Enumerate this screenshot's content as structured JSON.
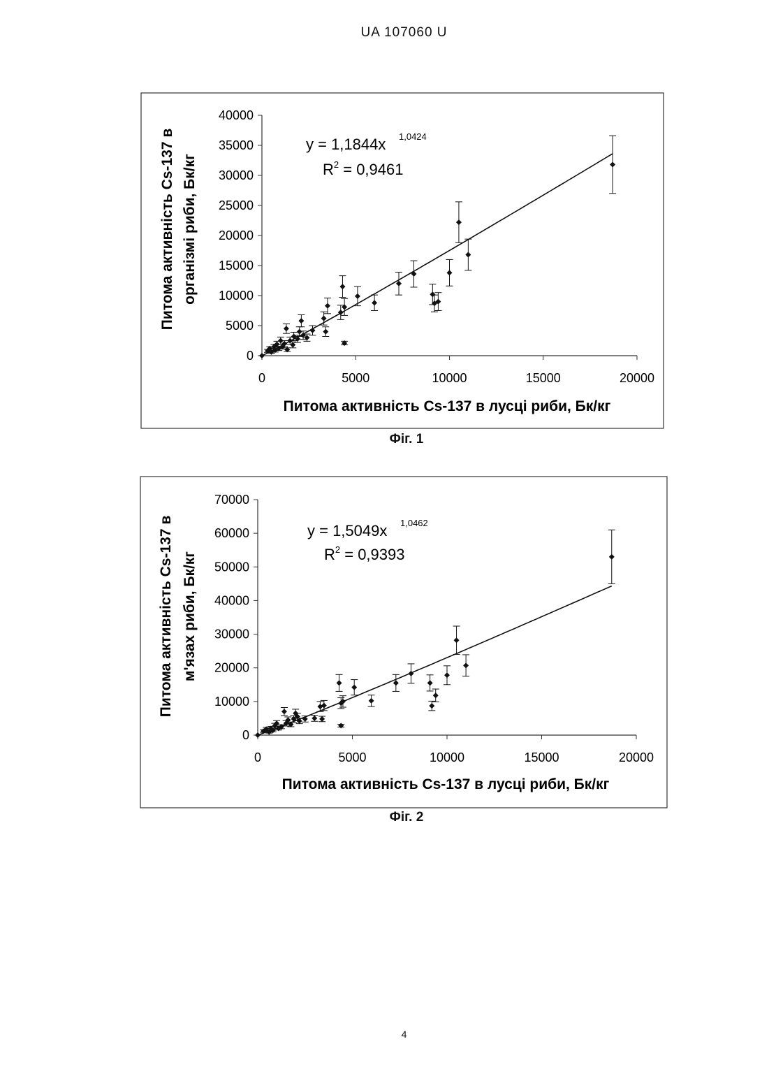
{
  "header": {
    "document_id": "UA   107060   U"
  },
  "page_number": "4",
  "figures": [
    {
      "caption": "Фіг. 1"
    },
    {
      "caption": "Фіг. 2"
    }
  ],
  "chart_data": [
    {
      "type": "scatter",
      "xlabel": "Питома активність Cs-137 в лусці риби, Бк/кг",
      "ylabel_lines": [
        "Питома активність Cs-137 в",
        "організмі риби, Бк/кг"
      ],
      "xlim": [
        0,
        20000
      ],
      "ylim": [
        0,
        40000
      ],
      "xticks": [
        "0",
        "5000",
        "10000",
        "15000",
        "20000"
      ],
      "yticks": [
        "0",
        "5000",
        "10000",
        "15000",
        "20000",
        "25000",
        "30000",
        "35000",
        "40000"
      ],
      "grid": false,
      "trendline": {
        "type": "power",
        "equation_main": "y = 1,1844x",
        "equation_exponent": "1,0424",
        "r2_prefix": "R",
        "r2_sup": "2",
        "r2_value": " = 0,9461",
        "a": 1.1844,
        "b": 1.0424,
        "x_range": [
          0,
          18700
        ]
      },
      "points": [
        {
          "x": 0,
          "y": 0,
          "err": 0
        },
        {
          "x": 300,
          "y": 800,
          "err": 250
        },
        {
          "x": 420,
          "y": 1200,
          "err": 300
        },
        {
          "x": 500,
          "y": 600,
          "err": 200
        },
        {
          "x": 650,
          "y": 1500,
          "err": 400
        },
        {
          "x": 700,
          "y": 900,
          "err": 300
        },
        {
          "x": 800,
          "y": 1900,
          "err": 500
        },
        {
          "x": 900,
          "y": 1200,
          "err": 350
        },
        {
          "x": 1000,
          "y": 2500,
          "err": 600
        },
        {
          "x": 1100,
          "y": 1500,
          "err": 400
        },
        {
          "x": 1200,
          "y": 2000,
          "err": 500
        },
        {
          "x": 1300,
          "y": 4500,
          "err": 800
        },
        {
          "x": 1350,
          "y": 1000,
          "err": 300
        },
        {
          "x": 1500,
          "y": 2500,
          "err": 600
        },
        {
          "x": 1650,
          "y": 1800,
          "err": 500
        },
        {
          "x": 1700,
          "y": 3200,
          "err": 700
        },
        {
          "x": 1900,
          "y": 2800,
          "err": 600
        },
        {
          "x": 2000,
          "y": 4000,
          "err": 800
        },
        {
          "x": 2100,
          "y": 5800,
          "err": 1000
        },
        {
          "x": 2200,
          "y": 3400,
          "err": 700
        },
        {
          "x": 2400,
          "y": 3000,
          "err": 600
        },
        {
          "x": 2700,
          "y": 4200,
          "err": 800
        },
        {
          "x": 3300,
          "y": 6200,
          "err": 1100
        },
        {
          "x": 3400,
          "y": 4000,
          "err": 800
        },
        {
          "x": 3500,
          "y": 8300,
          "err": 1300
        },
        {
          "x": 4200,
          "y": 7200,
          "err": 1200
        },
        {
          "x": 4300,
          "y": 11500,
          "err": 1800
        },
        {
          "x": 4400,
          "y": 8100,
          "err": 1400
        },
        {
          "x": 4400,
          "y": 2100,
          "err": 300
        },
        {
          "x": 5100,
          "y": 9900,
          "err": 1600
        },
        {
          "x": 6000,
          "y": 8800,
          "err": 1300
        },
        {
          "x": 7300,
          "y": 12000,
          "err": 1900
        },
        {
          "x": 8100,
          "y": 13600,
          "err": 2200
        },
        {
          "x": 9100,
          "y": 10200,
          "err": 1700
        },
        {
          "x": 9200,
          "y": 8700,
          "err": 1400
        },
        {
          "x": 9400,
          "y": 9000,
          "err": 1500
        },
        {
          "x": 10000,
          "y": 13800,
          "err": 2200
        },
        {
          "x": 10500,
          "y": 22200,
          "err": 3400
        },
        {
          "x": 11000,
          "y": 16800,
          "err": 2600
        },
        {
          "x": 18700,
          "y": 31800,
          "err": 4800
        }
      ]
    },
    {
      "type": "scatter",
      "xlabel": "Питома активність Cs-137 в лусці риби, Бк/кг",
      "ylabel_lines": [
        "Питома активність Cs-137 в",
        "м'язах риби, Бк/кг"
      ],
      "xlim": [
        0,
        20000
      ],
      "ylim": [
        0,
        70000
      ],
      "xticks": [
        "0",
        "5000",
        "10000",
        "15000",
        "20000"
      ],
      "yticks": [
        "0",
        "10000",
        "20000",
        "30000",
        "40000",
        "50000",
        "60000",
        "70000"
      ],
      "grid": false,
      "trendline": {
        "type": "power",
        "equation_main": "y = 1,5049x",
        "equation_exponent": "1,0462",
        "r2_prefix": "R",
        "r2_sup": "2",
        "r2_value": " = 0,9393",
        "a": 1.5049,
        "b": 1.0462,
        "x_range": [
          0,
          18700
        ]
      },
      "points": [
        {
          "x": 0,
          "y": 0,
          "err": 0
        },
        {
          "x": 300,
          "y": 1200,
          "err": 400
        },
        {
          "x": 450,
          "y": 1800,
          "err": 500
        },
        {
          "x": 600,
          "y": 900,
          "err": 300
        },
        {
          "x": 700,
          "y": 2000,
          "err": 600
        },
        {
          "x": 800,
          "y": 1400,
          "err": 400
        },
        {
          "x": 900,
          "y": 2800,
          "err": 700
        },
        {
          "x": 1000,
          "y": 3500,
          "err": 800
        },
        {
          "x": 1100,
          "y": 2000,
          "err": 500
        },
        {
          "x": 1250,
          "y": 2500,
          "err": 600
        },
        {
          "x": 1400,
          "y": 7000,
          "err": 1200
        },
        {
          "x": 1500,
          "y": 3500,
          "err": 800
        },
        {
          "x": 1600,
          "y": 4500,
          "err": 900
        },
        {
          "x": 1750,
          "y": 3200,
          "err": 700
        },
        {
          "x": 1900,
          "y": 4800,
          "err": 1000
        },
        {
          "x": 2000,
          "y": 6500,
          "err": 1200
        },
        {
          "x": 2100,
          "y": 5500,
          "err": 1000
        },
        {
          "x": 2200,
          "y": 4200,
          "err": 800
        },
        {
          "x": 2500,
          "y": 4800,
          "err": 900
        },
        {
          "x": 3000,
          "y": 5000,
          "err": 900
        },
        {
          "x": 3300,
          "y": 8500,
          "err": 1500
        },
        {
          "x": 3400,
          "y": 4800,
          "err": 800
        },
        {
          "x": 3500,
          "y": 8800,
          "err": 1500
        },
        {
          "x": 4300,
          "y": 15500,
          "err": 2500
        },
        {
          "x": 4400,
          "y": 9500,
          "err": 1600
        },
        {
          "x": 4500,
          "y": 10000,
          "err": 1700
        },
        {
          "x": 4400,
          "y": 2800,
          "err": 400
        },
        {
          "x": 5100,
          "y": 14200,
          "err": 2300
        },
        {
          "x": 6000,
          "y": 10200,
          "err": 1700
        },
        {
          "x": 7300,
          "y": 15500,
          "err": 2500
        },
        {
          "x": 8100,
          "y": 18300,
          "err": 2900
        },
        {
          "x": 9100,
          "y": 15500,
          "err": 2400
        },
        {
          "x": 9200,
          "y": 8700,
          "err": 1400
        },
        {
          "x": 9400,
          "y": 11800,
          "err": 1900
        },
        {
          "x": 10000,
          "y": 17800,
          "err": 2800
        },
        {
          "x": 10500,
          "y": 28200,
          "err": 4200
        },
        {
          "x": 11000,
          "y": 20700,
          "err": 3200
        },
        {
          "x": 18700,
          "y": 53000,
          "err": 8000
        }
      ]
    }
  ]
}
